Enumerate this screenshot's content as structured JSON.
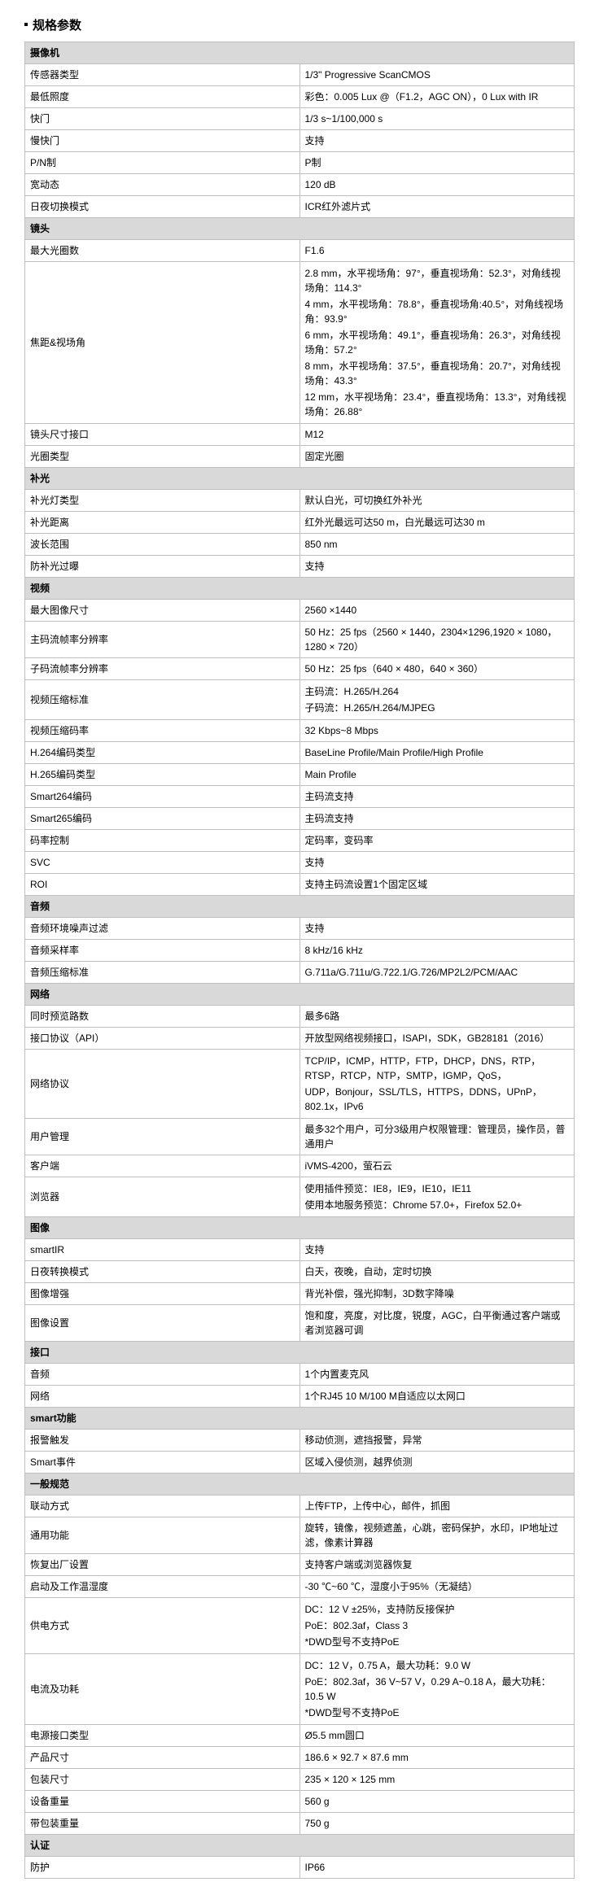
{
  "page_title": "规格参数",
  "sections": [
    {
      "name": "摄像机",
      "rows": [
        {
          "label": "传感器类型",
          "value": "1/3\" Progressive ScanCMOS"
        },
        {
          "label": "最低照度",
          "value": "彩色：0.005 Lux @（F1.2，AGC ON），0 Lux with IR"
        },
        {
          "label": "快门",
          "value": "1/3 s~1/100,000 s"
        },
        {
          "label": "慢快门",
          "value": "支持"
        },
        {
          "label": "P/N制",
          "value": "P制"
        },
        {
          "label": "宽动态",
          "value": "120 dB"
        },
        {
          "label": "日夜切换模式",
          "value": "ICR红外滤片式"
        }
      ]
    },
    {
      "name": "镜头",
      "rows": [
        {
          "label": "最大光圈数",
          "value": "F1.6"
        },
        {
          "label": "焦距&视场角",
          "lines": [
            "2.8 mm，水平视场角：97°，垂直视场角：52.3°，对角线视场角：114.3°",
            "4 mm，水平视场角：78.8°，垂直视场角:40.5°，对角线视场角：93.9°",
            "6 mm，水平视场角：49.1°，垂直视场角：26.3°，对角线视场角：57.2°",
            "8 mm，水平视场角：37.5°，垂直视场角：20.7°，对角线视场角：43.3°",
            "12 mm，水平视场角：23.4°，垂直视场角：13.3°，对角线视场角：26.88°"
          ]
        },
        {
          "label": "镜头尺寸接口",
          "value": "M12"
        },
        {
          "label": "光圈类型",
          "value": "固定光圈"
        }
      ]
    },
    {
      "name": "补光",
      "rows": [
        {
          "label": "补光灯类型",
          "value": "默认白光，可切换红外补光"
        },
        {
          "label": "补光距离",
          "value": "红外光最远可达50 m，白光最远可达30 m"
        },
        {
          "label": "波长范围",
          "value": "850 nm"
        },
        {
          "label": "防补光过曝",
          "value": "支持"
        }
      ]
    },
    {
      "name": "视频",
      "rows": [
        {
          "label": "最大图像尺寸",
          "value": "2560 ×1440"
        },
        {
          "label": "主码流帧率分辨率",
          "value": "50 Hz：25 fps（2560 × 1440，2304×1296,1920 × 1080，1280 × 720）"
        },
        {
          "label": "子码流帧率分辨率",
          "value": "50 Hz：25 fps（640 × 480，640 × 360）"
        },
        {
          "label": "视频压缩标准",
          "lines": [
            "主码流：H.265/H.264",
            "子码流：H.265/H.264/MJPEG"
          ]
        },
        {
          "label": "视频压缩码率",
          "value": "32 Kbps~8 Mbps"
        },
        {
          "label": "H.264编码类型",
          "value": "BaseLine Profile/Main Profile/High Profile"
        },
        {
          "label": "H.265编码类型",
          "value": "Main Profile"
        },
        {
          "label": "Smart264编码",
          "value": "主码流支持"
        },
        {
          "label": "Smart265编码",
          "value": "主码流支持"
        },
        {
          "label": "码率控制",
          "value": "定码率，变码率"
        },
        {
          "label": "SVC",
          "value": "支持"
        },
        {
          "label": "ROI",
          "value": "支持主码流设置1个固定区域"
        }
      ]
    },
    {
      "name": "音频",
      "rows": [
        {
          "label": "音频环境噪声过滤",
          "value": "支持"
        },
        {
          "label": "音频采样率",
          "value": "8 kHz/16 kHz"
        },
        {
          "label": "音频压缩标准",
          "value": "G.711a/G.711u/G.722.1/G.726/MP2L2/PCM/AAC"
        }
      ]
    },
    {
      "name": "网络",
      "rows": [
        {
          "label": "同时预览路数",
          "value": "最多6路"
        },
        {
          "label": "接口协议（API）",
          "value": "开放型网络视频接口，ISAPI，SDK，GB28181（2016）"
        },
        {
          "label": "网络协议",
          "lines": [
            "TCP/IP，ICMP，HTTP，FTP，DHCP，DNS，RTP，RTSP，RTCP，NTP，SMTP，IGMP，QoS，",
            "UDP，Bonjour，SSL/TLS，HTTPS，DDNS，UPnP，802.1x，IPv6"
          ]
        },
        {
          "label": "用户管理",
          "value": "最多32个用户，可分3级用户权限管理：管理员，操作员，普通用户"
        },
        {
          "label": "客户端",
          "value": "iVMS-4200，萤石云"
        },
        {
          "label": "浏览器",
          "lines": [
            "使用插件预览：IE8，IE9，IE10，IE11",
            "使用本地服务预览：Chrome 57.0+，Firefox 52.0+"
          ]
        }
      ]
    },
    {
      "name": "图像",
      "rows": [
        {
          "label": "smartIR",
          "value": "支持"
        },
        {
          "label": "日夜转换模式",
          "value": "白天，夜晚，自动，定时切换"
        },
        {
          "label": "图像增强",
          "value": "背光补偿，强光抑制，3D数字降噪"
        },
        {
          "label": "图像设置",
          "value": "饱和度，亮度，对比度，锐度，AGC，白平衡通过客户端或者浏览器可调"
        }
      ]
    },
    {
      "name": "接口",
      "rows": [
        {
          "label": "音频",
          "value": "1个内置麦克风"
        },
        {
          "label": "网络",
          "value": "1个RJ45 10 M/100 M自适应以太网口"
        }
      ]
    },
    {
      "name": "smart功能",
      "rows": [
        {
          "label": "报警触发",
          "value": "移动侦测，遮挡报警，异常"
        },
        {
          "label": "Smart事件",
          "value": "区域入侵侦测，越界侦测"
        }
      ]
    },
    {
      "name": "一般规范",
      "rows": [
        {
          "label": "联动方式",
          "value": "上传FTP，上传中心，邮件，抓图"
        },
        {
          "label": "通用功能",
          "value": "旋转，镜像，视频遮盖，心跳，密码保护，水印，IP地址过滤，像素计算器"
        },
        {
          "label": "恢复出厂设置",
          "value": "支持客户端或浏览器恢复"
        },
        {
          "label": "启动及工作温湿度",
          "value": "-30 ℃~60 ℃，湿度小于95%（无凝结）"
        },
        {
          "label": "供电方式",
          "lines": [
            "DC：12 V ±25%，支持防反接保护",
            "PoE：802.3af，Class 3",
            "*DWD型号不支持PoE"
          ]
        },
        {
          "label": "电流及功耗",
          "lines": [
            "DC：12 V，0.75 A，最大功耗：9.0 W",
            "PoE：802.3af，36 V~57 V，0.29 A~0.18 A，最大功耗：10.5 W",
            "*DWD型号不支持PoE"
          ]
        },
        {
          "label": "电源接口类型",
          "value": "Ø5.5 mm圆口"
        },
        {
          "label": "产品尺寸",
          "value": "186.6 × 92.7 × 87.6 mm"
        },
        {
          "label": "包装尺寸",
          "value": "235 × 120 × 125 mm"
        },
        {
          "label": "设备重量",
          "value": "560 g"
        },
        {
          "label": "带包装重量",
          "value": "750 g"
        }
      ]
    },
    {
      "name": "认证",
      "rows": [
        {
          "label": "防护",
          "value": "IP66"
        }
      ]
    }
  ]
}
